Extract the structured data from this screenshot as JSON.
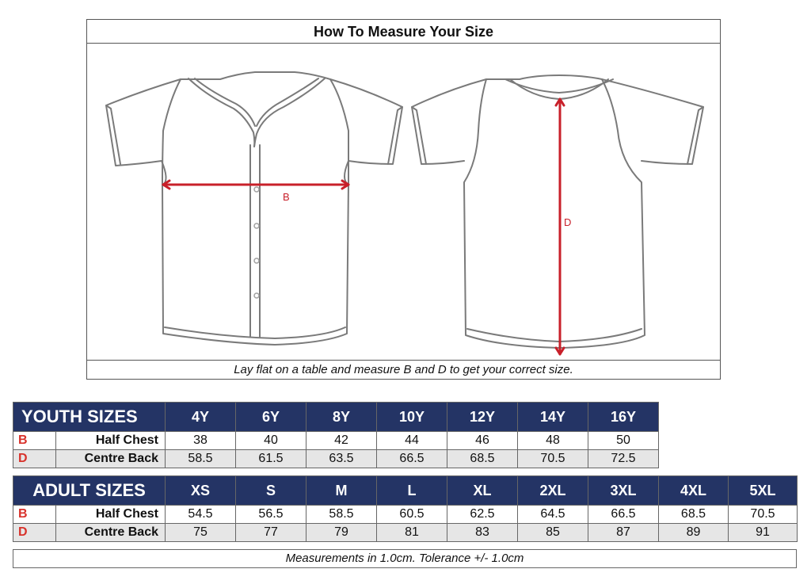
{
  "diagram": {
    "title": "How To Measure Your Size",
    "caption": "Lay flat on a table and measure B and D to get your correct size.",
    "label_b": "B",
    "label_d": "D",
    "colors": {
      "measure_line": "#c8202a",
      "outline": "#7a7a7a"
    }
  },
  "youth": {
    "title": "YOUTH SIZES",
    "sizes": [
      "4Y",
      "6Y",
      "8Y",
      "10Y",
      "12Y",
      "14Y",
      "16Y"
    ],
    "rows": [
      {
        "code": "B",
        "label": "Half Chest",
        "values": [
          "38",
          "40",
          "42",
          "44",
          "46",
          "48",
          "50"
        ]
      },
      {
        "code": "D",
        "label": "Centre Back",
        "values": [
          "58.5",
          "61.5",
          "63.5",
          "66.5",
          "68.5",
          "70.5",
          "72.5"
        ]
      }
    ]
  },
  "adult": {
    "title": "ADULT SIZES",
    "sizes": [
      "XS",
      "S",
      "M",
      "L",
      "XL",
      "2XL",
      "3XL",
      "4XL",
      "5XL"
    ],
    "rows": [
      {
        "code": "B",
        "label": "Half Chest",
        "values": [
          "54.5",
          "56.5",
          "58.5",
          "60.5",
          "62.5",
          "64.5",
          "66.5",
          "68.5",
          "70.5"
        ]
      },
      {
        "code": "D",
        "label": "Centre Back",
        "values": [
          "75",
          "77",
          "79",
          "81",
          "83",
          "85",
          "87",
          "89",
          "91"
        ]
      }
    ]
  },
  "footnote": "Measurements in 1.0cm.  Tolerance +/- 1.0cm",
  "colors": {
    "header_bg": "#243465",
    "code_text": "#d8322b",
    "alt_row": "#e6e6e6"
  }
}
